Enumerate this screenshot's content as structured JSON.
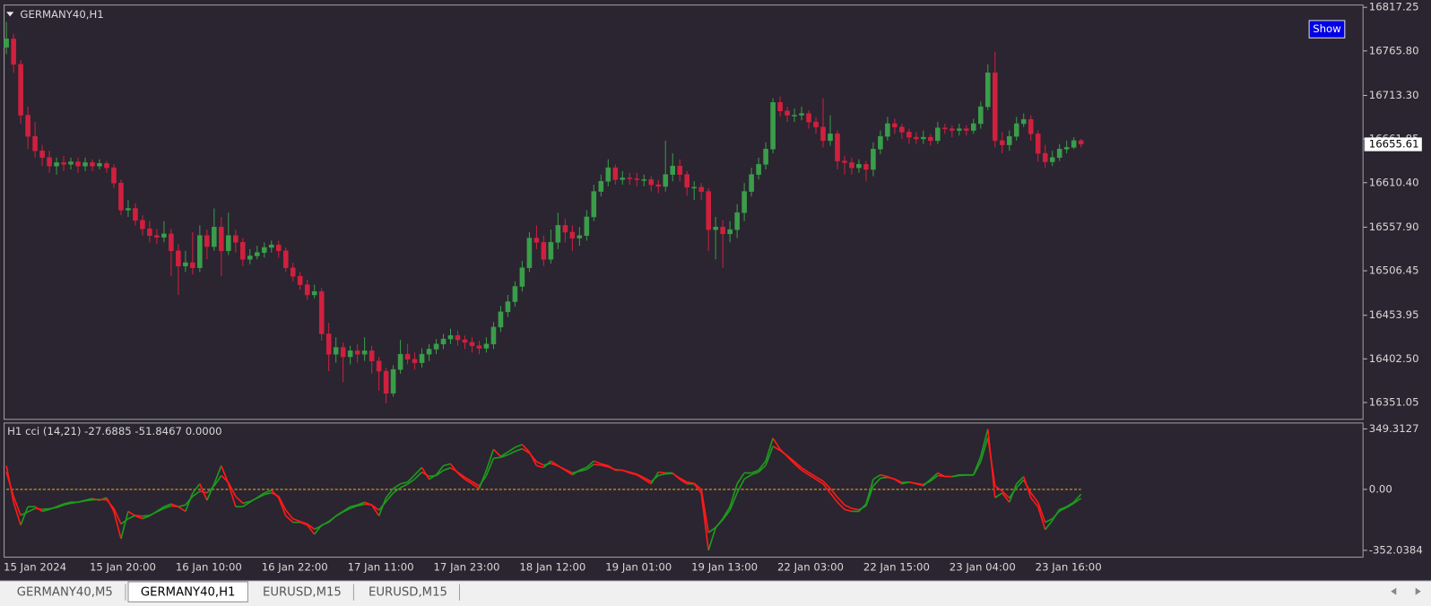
{
  "window_title": "GERMANY40,H1",
  "show_button": "Show",
  "tabs": [
    "GERMANY40,M5",
    "GERMANY40,H1",
    "EURUSD,M15",
    "EURUSD,M15"
  ],
  "active_tab": 1,
  "chart_data": [
    {
      "type": "candlestick",
      "title": "GERMANY40,H1",
      "categories": [
        "15 Jan 2024",
        null,
        null,
        null,
        null,
        null,
        null,
        null,
        null,
        null,
        null,
        null,
        "15 Jan 20:00",
        null,
        null,
        null,
        null,
        null,
        null,
        null,
        null,
        null,
        null,
        null,
        "16 Jan 10:00",
        null,
        null,
        null,
        null,
        null,
        null,
        null,
        null,
        null,
        null,
        null,
        "16 Jan 22:00",
        null,
        null,
        null,
        null,
        null,
        null,
        null,
        null,
        null,
        null,
        null,
        "17 Jan 11:00",
        null,
        null,
        null,
        null,
        null,
        null,
        null,
        null,
        null,
        null,
        null,
        "17 Jan 23:00",
        null,
        null,
        null,
        null,
        null,
        null,
        null,
        null,
        null,
        null,
        null,
        "18 Jan 12:00",
        null,
        null,
        null,
        null,
        null,
        null,
        null,
        null,
        null,
        null,
        null,
        "19 Jan 01:00",
        null,
        null,
        null,
        null,
        null,
        null,
        null,
        null,
        null,
        null,
        null,
        "19 Jan 13:00",
        null,
        null,
        null,
        null,
        null,
        null,
        null,
        null,
        null,
        null,
        null,
        "22 Jan 03:00",
        null,
        null,
        null,
        null,
        null,
        null,
        null,
        null,
        null,
        null,
        null,
        "22 Jan 15:00",
        null,
        null,
        null,
        null,
        null,
        null,
        null,
        null,
        null,
        null,
        null,
        "23 Jan 04:00",
        null,
        null,
        null,
        null,
        null,
        null,
        null,
        null,
        null,
        null,
        null,
        "23 Jan 16:00",
        null,
        null,
        null,
        null,
        null,
        null
      ],
      "open": [
        16770,
        16780,
        16750,
        16690,
        16665,
        16648,
        16640,
        16630,
        16634,
        16632,
        16635,
        16630,
        16634,
        16630,
        16633,
        16628,
        16610,
        16578,
        16580,
        16566,
        16556,
        16548,
        16546,
        16550,
        16530,
        16512,
        16516,
        16510,
        16548,
        16535,
        16558,
        16530,
        16548,
        16540,
        16520,
        16524,
        16528,
        16534,
        16537,
        16530,
        16510,
        16500,
        16490,
        16478,
        16482,
        16432,
        16408,
        16416,
        16405,
        16412,
        16408,
        16412,
        16400,
        16388,
        16362,
        16390,
        16408,
        16402,
        16398,
        16408,
        16414,
        16420,
        16426,
        16430,
        16425,
        16422,
        16418,
        16415,
        16420,
        16440,
        16458,
        16470,
        16488,
        16510,
        16545,
        16540,
        16520,
        16540,
        16560,
        16552,
        16545,
        16548,
        16570,
        16600,
        16612,
        16628,
        16614,
        16616,
        16615,
        16614,
        16614,
        16608,
        16606,
        16620,
        16630,
        16620,
        16605,
        16605,
        16600,
        16555,
        16558,
        16550,
        16555,
        16575,
        16600,
        16620,
        16632,
        16650,
        16705,
        16695,
        16690,
        16690,
        16692,
        16682,
        16676,
        16660,
        16668,
        16636,
        16634,
        16628,
        16632,
        16626,
        16650,
        16665,
        16680,
        16676,
        16670,
        16664,
        16662,
        16664,
        16660,
        16675,
        16674,
        16672,
        16674,
        16672,
        16680,
        16700,
        16740,
        16660,
        16655,
        16665,
        16680,
        16685,
        16668,
        16645,
        16635,
        16640,
        16650,
        16652,
        16660
      ],
      "high": [
        16800,
        16786,
        16755,
        16700,
        16682,
        16655,
        16648,
        16640,
        16642,
        16640,
        16640,
        16640,
        16638,
        16638,
        16636,
        16632,
        16614,
        16590,
        16586,
        16572,
        16565,
        16556,
        16565,
        16556,
        16538,
        16530,
        16552,
        16560,
        16555,
        16580,
        16570,
        16575,
        16555,
        16545,
        16532,
        16536,
        16540,
        16542,
        16542,
        16534,
        16516,
        16505,
        16496,
        16490,
        16486,
        16445,
        16428,
        16422,
        16418,
        16420,
        16428,
        16418,
        16405,
        16392,
        16395,
        16425,
        16420,
        16410,
        16415,
        16420,
        16426,
        16432,
        16438,
        16436,
        16430,
        16428,
        16424,
        16428,
        16446,
        16465,
        16478,
        16494,
        16518,
        16552,
        16560,
        16548,
        16555,
        16575,
        16568,
        16560,
        16558,
        16578,
        16608,
        16620,
        16638,
        16632,
        16624,
        16622,
        16622,
        16620,
        16618,
        16614,
        16660,
        16645,
        16638,
        16624,
        16612,
        16610,
        16604,
        16570,
        16566,
        16565,
        16585,
        16610,
        16628,
        16640,
        16658,
        16710,
        16712,
        16700,
        16698,
        16700,
        16696,
        16688,
        16710,
        16690,
        16672,
        16642,
        16640,
        16638,
        16636,
        16658,
        16672,
        16688,
        16686,
        16680,
        16674,
        16670,
        16672,
        16668,
        16682,
        16680,
        16678,
        16680,
        16678,
        16686,
        16706,
        16750,
        16765,
        16670,
        16672,
        16688,
        16692,
        16690,
        16672,
        16655,
        16648,
        16656,
        16660,
        16664,
        16662
      ],
      "low": [
        16762,
        16740,
        16680,
        16650,
        16640,
        16630,
        16622,
        16620,
        16624,
        16626,
        16622,
        16624,
        16624,
        16626,
        16622,
        16604,
        16572,
        16570,
        16560,
        16548,
        16540,
        16538,
        16540,
        16500,
        16478,
        16505,
        16502,
        16505,
        16520,
        16530,
        16500,
        16525,
        16528,
        16512,
        16514,
        16520,
        16522,
        16528,
        16522,
        16505,
        16494,
        16484,
        16472,
        16474,
        16424,
        16388,
        16398,
        16375,
        16396,
        16398,
        16400,
        16385,
        16365,
        16350,
        16358,
        16385,
        16396,
        16390,
        16392,
        16400,
        16408,
        16414,
        16420,
        16418,
        16414,
        16410,
        16408,
        16410,
        16414,
        16434,
        16452,
        16464,
        16482,
        16505,
        16532,
        16512,
        16515,
        16532,
        16540,
        16530,
        16536,
        16542,
        16565,
        16594,
        16606,
        16608,
        16608,
        16608,
        16606,
        16606,
        16600,
        16598,
        16600,
        16612,
        16612,
        16595,
        16590,
        16590,
        16530,
        16520,
        16510,
        16540,
        16545,
        16565,
        16594,
        16614,
        16626,
        16645,
        16688,
        16682,
        16682,
        16684,
        16674,
        16668,
        16652,
        16654,
        16626,
        16620,
        16620,
        16622,
        16612,
        16618,
        16644,
        16660,
        16668,
        16662,
        16656,
        16656,
        16656,
        16654,
        16656,
        16668,
        16664,
        16666,
        16666,
        16668,
        16674,
        16696,
        16652,
        16645,
        16648,
        16660,
        16676,
        16660,
        16635,
        16628,
        16630,
        16636,
        16645,
        16650,
        16652
      ],
      "close": [
        16780,
        16750,
        16690,
        16665,
        16648,
        16640,
        16630,
        16634,
        16632,
        16635,
        16630,
        16634,
        16630,
        16633,
        16628,
        16610,
        16578,
        16580,
        16566,
        16556,
        16548,
        16546,
        16550,
        16530,
        16512,
        16516,
        16510,
        16548,
        16535,
        16558,
        16530,
        16548,
        16540,
        16520,
        16524,
        16528,
        16534,
        16537,
        16530,
        16510,
        16500,
        16490,
        16478,
        16482,
        16432,
        16408,
        16416,
        16405,
        16412,
        16408,
        16412,
        16400,
        16388,
        16362,
        16390,
        16408,
        16402,
        16398,
        16408,
        16414,
        16420,
        16426,
        16430,
        16425,
        16422,
        16418,
        16415,
        16420,
        16440,
        16458,
        16470,
        16488,
        16510,
        16545,
        16540,
        16520,
        16540,
        16560,
        16552,
        16545,
        16548,
        16570,
        16600,
        16612,
        16628,
        16614,
        16616,
        16615,
        16614,
        16614,
        16608,
        16606,
        16620,
        16630,
        16620,
        16605,
        16605,
        16600,
        16555,
        16558,
        16550,
        16555,
        16575,
        16600,
        16620,
        16632,
        16650,
        16705,
        16695,
        16690,
        16690,
        16692,
        16682,
        16676,
        16660,
        16668,
        16636,
        16634,
        16628,
        16632,
        16626,
        16650,
        16665,
        16680,
        16676,
        16670,
        16664,
        16662,
        16664,
        16660,
        16675,
        16674,
        16672,
        16674,
        16672,
        16680,
        16700,
        16740,
        16660,
        16655,
        16665,
        16680,
        16685,
        16668,
        16645,
        16635,
        16640,
        16650,
        16652,
        16660,
        16656
      ],
      "up_color": "#3a9d4a",
      "down_color": "#d0203f",
      "ylim": [
        16331.7,
        16820.5
      ],
      "yticks": [
        16817.25,
        {
          "value": 16765.8,
          "label": "16765.80"
        },
        {
          "value": 16713.3,
          "label": "16713.30"
        },
        16661.85,
        {
          "value": 16610.4,
          "label": "16610.40"
        },
        {
          "value": 16557.9,
          "label": "16557.90"
        },
        16506.45,
        16453.95,
        {
          "value": 16402.5,
          "label": "16402.50"
        },
        16351.05
      ],
      "last_price": 16655.61
    },
    {
      "type": "line",
      "title": "H1 cci  (14,21) -27.6885 -51.8467 0.0000",
      "series": [
        {
          "values": [
            137,
            -74,
            -206,
            -100,
            -100,
            -127,
            -116,
            -100,
            -84,
            -74,
            -74,
            -63,
            -53,
            -63,
            -48,
            -127,
            -285,
            -127,
            -153,
            -169,
            -153,
            -127,
            -100,
            -84,
            -100,
            -127,
            -21,
            32,
            -63,
            32,
            137,
            32,
            -100,
            -100,
            -74,
            -48,
            -21,
            -5,
            -48,
            -153,
            -190,
            -190,
            -206,
            -259,
            -206,
            -190,
            -153,
            -127,
            -100,
            -90,
            -74,
            -90,
            -153,
            -48,
            5,
            32,
            42,
            84,
            127,
            58,
            84,
            137,
            148,
            95,
            58,
            32,
            5,
            111,
            232,
            190,
            216,
            243,
            259,
            216,
            137,
            127,
            164,
            137,
            111,
            84,
            111,
            127,
            164,
            148,
            137,
            111,
            111,
            95,
            84,
            58,
            32,
            100,
            95,
            95,
            58,
            32,
            32,
            -21,
            -352,
            -222,
            -169,
            -100,
            32,
            95,
            95,
            111,
            164,
            296,
            232,
            190,
            148,
            111,
            84,
            58,
            32,
            -21,
            -74,
            -116,
            -127,
            -127,
            -84,
            58,
            84,
            74,
            58,
            32,
            42,
            32,
            21,
            58,
            95,
            74,
            74,
            84,
            84,
            84,
            190,
            349,
            -48,
            -21,
            -74,
            32,
            74,
            -48,
            -100,
            -232,
            -180,
            -116,
            -100,
            -74,
            -27.6885
          ]
        },
        {
          "values": [
            100,
            -40,
            -150,
            -130,
            -110,
            -115,
            -112,
            -105,
            -90,
            -80,
            -74,
            -66,
            -60,
            -58,
            -60,
            -110,
            -200,
            -170,
            -150,
            -155,
            -150,
            -130,
            -110,
            -95,
            -100,
            -90,
            -40,
            -10,
            -20,
            20,
            80,
            40,
            -40,
            -80,
            -70,
            -50,
            -30,
            -20,
            -40,
            -120,
            -170,
            -185,
            -200,
            -230,
            -210,
            -185,
            -155,
            -130,
            -110,
            -95,
            -85,
            -90,
            -120,
            -70,
            -20,
            10,
            30,
            60,
            100,
            75,
            80,
            110,
            125,
            100,
            70,
            45,
            20,
            80,
            180,
            185,
            200,
            220,
            235,
            210,
            160,
            140,
            150,
            135,
            115,
            95,
            105,
            115,
            145,
            140,
            130,
            115,
            110,
            100,
            88,
            68,
            45,
            80,
            90,
            92,
            65,
            42,
            35,
            0,
            -250,
            -220,
            -175,
            -120,
            -20,
            60,
            85,
            100,
            140,
            250,
            225,
            195,
            160,
            125,
            98,
            72,
            48,
            5,
            -45,
            -90,
            -110,
            -118,
            -95,
            20,
            65,
            70,
            60,
            40,
            42,
            35,
            28,
            48,
            80,
            75,
            74,
            80,
            82,
            83,
            160,
            300,
            20,
            -10,
            -50,
            10,
            55,
            -20,
            -75,
            -190,
            -170,
            -125,
            -105,
            -80,
            -51.8467
          ]
        }
      ],
      "rise_color": "#1f9a1f",
      "fall_color": "#ff1a1a",
      "level": 0,
      "level_color": "#e0a020",
      "ylim": [
        -388.9,
        386.2
      ],
      "yticks": [
        349.3127,
        {
          "value": 0,
          "label": "0.00"
        },
        -352.0384
      ]
    }
  ]
}
